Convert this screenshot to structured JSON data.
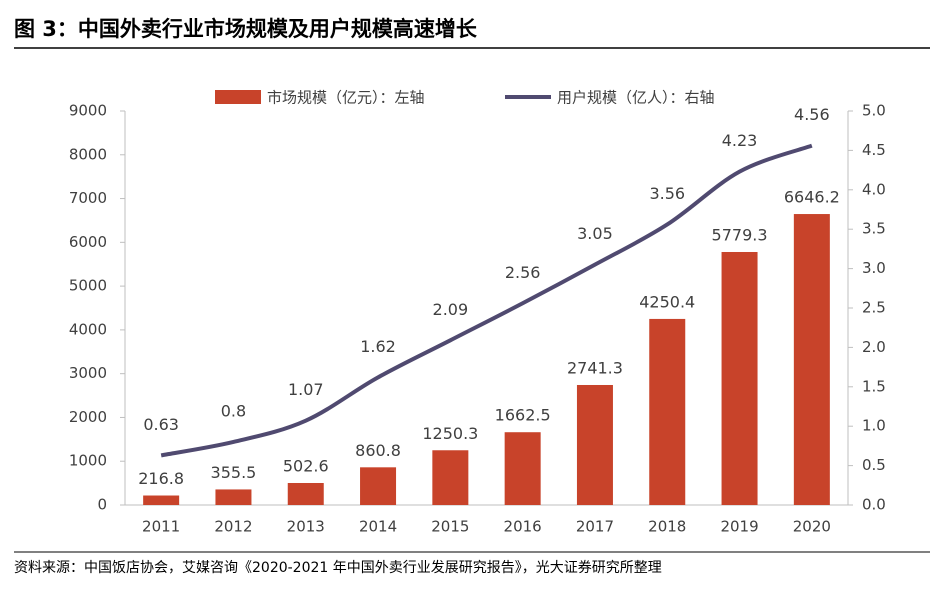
{
  "chart_data": {
    "type": "bar",
    "title": "图 3：中国外卖行业市场规模及用户规模高速增长",
    "source": "资料来源：中国饭店协会，艾媒咨询《2020-2021 年中国外卖行业发展研究报告》，光大证券研究所整理",
    "categories": [
      "2011",
      "2012",
      "2013",
      "2014",
      "2015",
      "2016",
      "2017",
      "2018",
      "2019",
      "2020"
    ],
    "series": [
      {
        "name": "市场规模（亿元）：左轴",
        "type": "bar",
        "color": "#c8432a",
        "values": [
          216.8,
          355.5,
          502.6,
          860.8,
          1250.3,
          1662.5,
          2741.3,
          4250.4,
          5779.3,
          6646.2
        ]
      },
      {
        "name": "用户规模（亿人）：右轴",
        "type": "line",
        "axis": "y2",
        "color": "#504a70",
        "values": [
          0.63,
          0.8,
          1.07,
          1.62,
          2.09,
          2.56,
          3.05,
          3.56,
          4.23,
          4.56
        ]
      }
    ],
    "ylim": [
      0,
      9000
    ],
    "yticks": [
      0,
      1000,
      2000,
      3000,
      4000,
      5000,
      6000,
      7000,
      8000,
      9000
    ],
    "y2lim": [
      0,
      5
    ],
    "y2ticks": [
      {
        "value": 0,
        "label": "0.0"
      },
      0.5,
      {
        "value": 1,
        "label": "1.0"
      },
      1.5,
      {
        "value": 2,
        "label": "2.0"
      },
      2.5,
      {
        "value": 3,
        "label": "3.0"
      },
      3.5,
      {
        "value": 4,
        "label": "4.0"
      },
      4.5,
      {
        "value": 5,
        "label": "5.0"
      }
    ],
    "legend": "top"
  }
}
